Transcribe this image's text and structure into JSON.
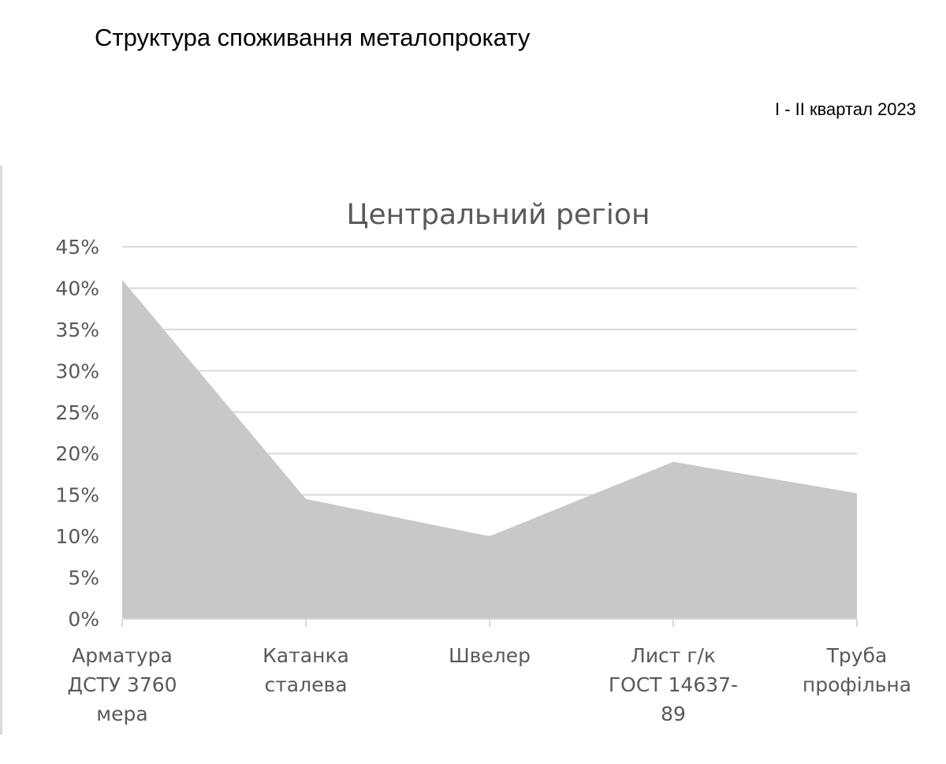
{
  "page": {
    "title": "Структура споживання металопрокату",
    "period": "I - II квартал 2023"
  },
  "chart_data": {
    "type": "area",
    "title": "Центральний регіон",
    "categories": [
      [
        "Арматура",
        "ДСТУ 3760",
        "мера"
      ],
      [
        "Катанка",
        "сталева"
      ],
      [
        "Швелер"
      ],
      [
        "Лист г/к",
        "ГОСТ 14637-",
        "89"
      ],
      [
        "Труба",
        "профільна"
      ]
    ],
    "values": [
      0.41,
      0.145,
      0.1,
      0.19,
      0.152
    ],
    "ylim": [
      0,
      0.45
    ],
    "yticks": [
      0,
      0.05,
      0.1,
      0.15,
      0.2,
      0.25,
      0.3,
      0.35,
      0.4,
      0.45
    ],
    "ytick_labels": [
      "0%",
      "5%",
      "10%",
      "15%",
      "20%",
      "25%",
      "30%",
      "35%",
      "40%",
      "45%"
    ],
    "xlabel": "",
    "ylabel": "",
    "grid": true,
    "legend": "none",
    "colors": {
      "area": "#c8c8c8",
      "grid": "#d9d9d9",
      "axis": "#d9d9d9",
      "text": "#595959"
    }
  }
}
